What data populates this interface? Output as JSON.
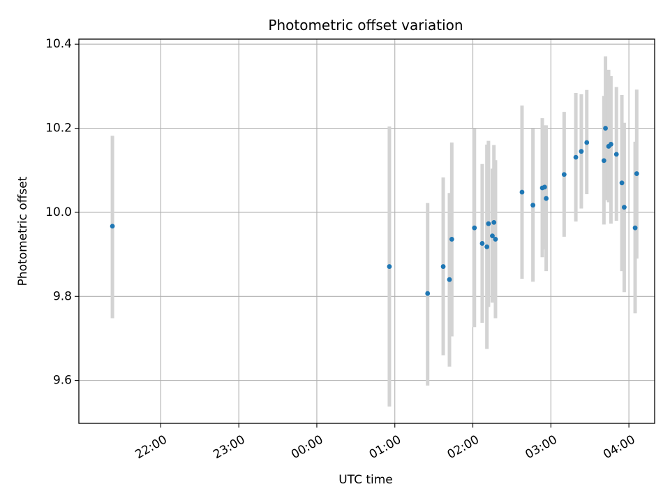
{
  "chart_data": {
    "type": "scatter",
    "title": "Photometric offset variation",
    "xlabel": "UTC time",
    "ylabel": "Photometric offset",
    "x_unit": "hours since 00:00 UTC",
    "xlim": [
      -3.05,
      4.33
    ],
    "ylim": [
      9.498,
      10.412
    ],
    "grid": true,
    "colors": {
      "marker": "#1f77b4",
      "errorbar": "#d3d3d3",
      "grid": "#b0b0b0"
    },
    "x_ticks": [
      {
        "value": -2,
        "label": "22:00"
      },
      {
        "value": -1,
        "label": "23:00"
      },
      {
        "value": 0,
        "label": "00:00"
      },
      {
        "value": 1,
        "label": "01:00"
      },
      {
        "value": 2,
        "label": "02:00"
      },
      {
        "value": 3,
        "label": "03:00"
      },
      {
        "value": 4,
        "label": "04:00"
      }
    ],
    "y_ticks": [
      {
        "value": 9.6,
        "label": "9.6"
      },
      {
        "value": 9.8,
        "label": "9.8"
      },
      {
        "value": 10.0,
        "label": "10.0"
      },
      {
        "value": 10.2,
        "label": "10.2"
      },
      {
        "value": 10.4,
        "label": "10.4"
      }
    ],
    "points": [
      {
        "x": -2.62,
        "y": 9.967,
        "lo": 9.748,
        "hi": 10.182
      },
      {
        "x": 0.93,
        "y": 9.871,
        "lo": 9.538,
        "hi": 10.204
      },
      {
        "x": 1.42,
        "y": 9.807,
        "lo": 9.588,
        "hi": 10.022
      },
      {
        "x": 1.62,
        "y": 9.871,
        "lo": 9.66,
        "hi": 10.083
      },
      {
        "x": 1.7,
        "y": 9.84,
        "lo": 9.633,
        "hi": 10.046
      },
      {
        "x": 1.73,
        "y": 9.936,
        "lo": 9.705,
        "hi": 10.166
      },
      {
        "x": 2.02,
        "y": 9.963,
        "lo": 9.727,
        "hi": 10.199
      },
      {
        "x": 2.12,
        "y": 9.926,
        "lo": 9.737,
        "hi": 10.115
      },
      {
        "x": 2.18,
        "y": 9.918,
        "lo": 9.675,
        "hi": 10.161
      },
      {
        "x": 2.2,
        "y": 9.973,
        "lo": 9.775,
        "hi": 10.17
      },
      {
        "x": 2.25,
        "y": 9.944,
        "lo": 9.785,
        "hi": 10.104
      },
      {
        "x": 2.27,
        "y": 9.976,
        "lo": 9.79,
        "hi": 10.16
      },
      {
        "x": 2.29,
        "y": 9.936,
        "lo": 9.748,
        "hi": 10.124
      },
      {
        "x": 2.63,
        "y": 10.048,
        "lo": 9.842,
        "hi": 10.254
      },
      {
        "x": 2.77,
        "y": 10.017,
        "lo": 9.835,
        "hi": 10.199
      },
      {
        "x": 2.89,
        "y": 10.058,
        "lo": 9.893,
        "hi": 10.224
      },
      {
        "x": 2.92,
        "y": 10.06,
        "lo": 9.912,
        "hi": 10.207
      },
      {
        "x": 2.94,
        "y": 10.033,
        "lo": 9.86,
        "hi": 10.207
      },
      {
        "x": 3.17,
        "y": 10.09,
        "lo": 9.942,
        "hi": 10.239
      },
      {
        "x": 3.32,
        "y": 10.131,
        "lo": 9.978,
        "hi": 10.284
      },
      {
        "x": 3.39,
        "y": 10.145,
        "lo": 10.009,
        "hi": 10.281
      },
      {
        "x": 3.46,
        "y": 10.166,
        "lo": 10.043,
        "hi": 10.291
      },
      {
        "x": 3.68,
        "y": 10.123,
        "lo": 9.971,
        "hi": 10.277
      },
      {
        "x": 3.7,
        "y": 10.2,
        "lo": 10.029,
        "hi": 10.371
      },
      {
        "x": 3.74,
        "y": 10.157,
        "lo": 10.024,
        "hi": 10.339
      },
      {
        "x": 3.77,
        "y": 10.162,
        "lo": 9.973,
        "hi": 10.324
      },
      {
        "x": 3.84,
        "y": 10.138,
        "lo": 9.98,
        "hi": 10.298
      },
      {
        "x": 3.91,
        "y": 10.07,
        "lo": 9.86,
        "hi": 10.279
      },
      {
        "x": 3.94,
        "y": 10.012,
        "lo": 9.81,
        "hi": 10.213
      },
      {
        "x": 4.08,
        "y": 9.963,
        "lo": 9.76,
        "hi": 10.168
      },
      {
        "x": 4.1,
        "y": 10.092,
        "lo": 9.89,
        "hi": 10.292
      }
    ]
  }
}
